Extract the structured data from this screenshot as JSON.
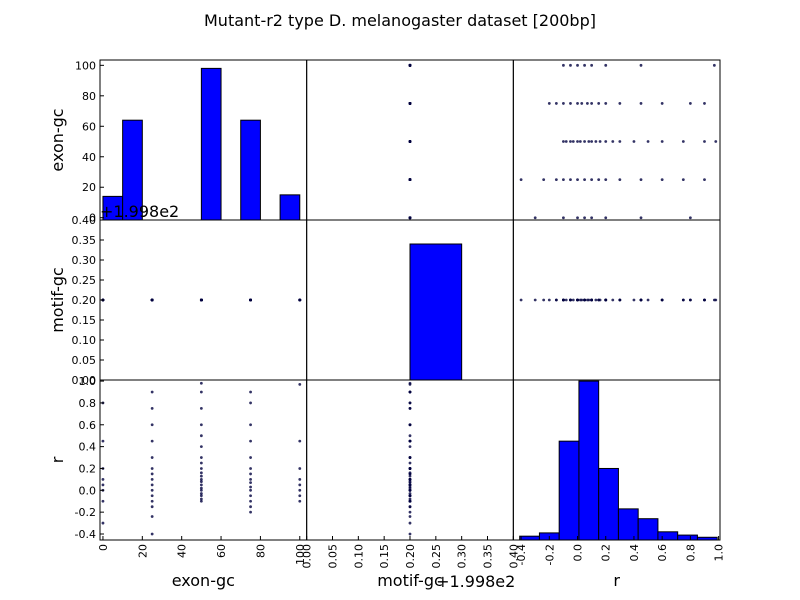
{
  "chart_data": {
    "type": "scatter_matrix",
    "title": "Mutant-r2 type D. melanogaster dataset [200bp]",
    "bar_color": "#0000ff",
    "point_color": "#00003f",
    "variables": [
      {
        "name": "exon-gc",
        "lim": [
          -1.5,
          103.5
        ],
        "ticks": [
          0,
          20,
          40,
          60,
          80,
          100
        ],
        "hist": {
          "bins": [
            0,
            10,
            20,
            30,
            40,
            50,
            60,
            70,
            80,
            90,
            100
          ],
          "tops": [
            14,
            64,
            null,
            null,
            null,
            98,
            null,
            64,
            null,
            15
          ]
        },
        "values": [
          0,
          0,
          0,
          0,
          0,
          0,
          0,
          0,
          25,
          25,
          25,
          25,
          25,
          25,
          25,
          25,
          25,
          25,
          25,
          25,
          25,
          25,
          25,
          50,
          50,
          50,
          50,
          50,
          50,
          50,
          50,
          50,
          50,
          50,
          50,
          50,
          50,
          50,
          50,
          50,
          50,
          50,
          50,
          75,
          75,
          75,
          75,
          75,
          75,
          75,
          75,
          75,
          75,
          75,
          75,
          75,
          75,
          75,
          100,
          100,
          100,
          100,
          100,
          100,
          100,
          100
        ]
      },
      {
        "name": "motif-gc",
        "lim": [
          0,
          0.4
        ],
        "offset_text": "+1.998e2",
        "ticks": [
          {
            "value": 0,
            "label": "0.00"
          },
          0.05,
          {
            "value": 0.1,
            "label": "0.10"
          },
          0.15,
          {
            "value": 0.2,
            "label": "0.20"
          },
          0.25,
          {
            "value": 0.3,
            "label": "0.30"
          },
          0.35,
          {
            "value": 0.4,
            "label": "0.40"
          }
        ],
        "hist": {
          "bins": [
            0.2,
            0.3
          ],
          "tops": [
            0.34
          ]
        },
        "values": [
          0.2,
          0.2,
          0.2,
          0.2,
          0.2,
          0.2,
          0.2,
          0.2,
          0.2,
          0.2,
          0.2,
          0.2,
          0.2,
          0.2,
          0.2,
          0.2,
          0.2,
          0.2,
          0.2,
          0.2,
          0.2,
          0.2,
          0.2,
          0.2,
          0.2,
          0.2,
          0.2,
          0.2,
          0.2,
          0.2,
          0.2,
          0.2,
          0.2,
          0.2,
          0.2,
          0.2,
          0.2,
          0.2,
          0.2,
          0.2,
          0.2,
          0.2,
          0.2,
          0.2,
          0.2,
          0.2,
          0.2,
          0.2,
          0.2,
          0.2,
          0.2,
          0.2,
          0.2,
          0.2,
          0.2,
          0.2,
          0.2,
          0.2,
          0.2,
          0.2,
          0.2,
          0.2,
          0.2,
          0.2,
          0.2,
          0.2
        ]
      },
      {
        "name": "r",
        "lim": [
          -0.455,
          1.01
        ],
        "ticks": [
          -0.4,
          -0.2,
          {
            "value": 0,
            "label": "0.0"
          },
          0.2,
          0.4,
          0.6,
          0.8,
          {
            "value": 1,
            "label": "1.0"
          }
        ],
        "hist": {
          "bins": [
            -0.41,
            -0.27,
            -0.13,
            0.01,
            0.15,
            0.29,
            0.43,
            0.57,
            0.71,
            0.85,
            0.99
          ],
          "tops": [
            -0.42,
            -0.39,
            0.45,
            1.0,
            0.2,
            -0.17,
            -0.26,
            -0.38,
            -0.41,
            -0.43
          ]
        },
        "values": [
          -0.3,
          -0.1,
          0.0,
          0.05,
          0.1,
          0.2,
          0.45,
          0.8,
          -0.4,
          -0.24,
          -0.15,
          -0.1,
          -0.05,
          0.0,
          0.05,
          0.1,
          0.15,
          0.2,
          0.3,
          0.45,
          0.6,
          0.75,
          0.9,
          -0.1,
          -0.08,
          -0.05,
          -0.03,
          0.0,
          0.02,
          0.05,
          0.08,
          0.1,
          0.13,
          0.16,
          0.2,
          0.25,
          0.3,
          0.4,
          0.5,
          0.6,
          0.75,
          0.9,
          0.98,
          -0.2,
          -0.15,
          -0.1,
          -0.05,
          0.0,
          0.03,
          0.07,
          0.1,
          0.15,
          0.2,
          0.3,
          0.45,
          0.6,
          0.8,
          0.9,
          -0.1,
          -0.05,
          0.0,
          0.05,
          0.1,
          0.2,
          0.45,
          0.97
        ]
      }
    ]
  }
}
